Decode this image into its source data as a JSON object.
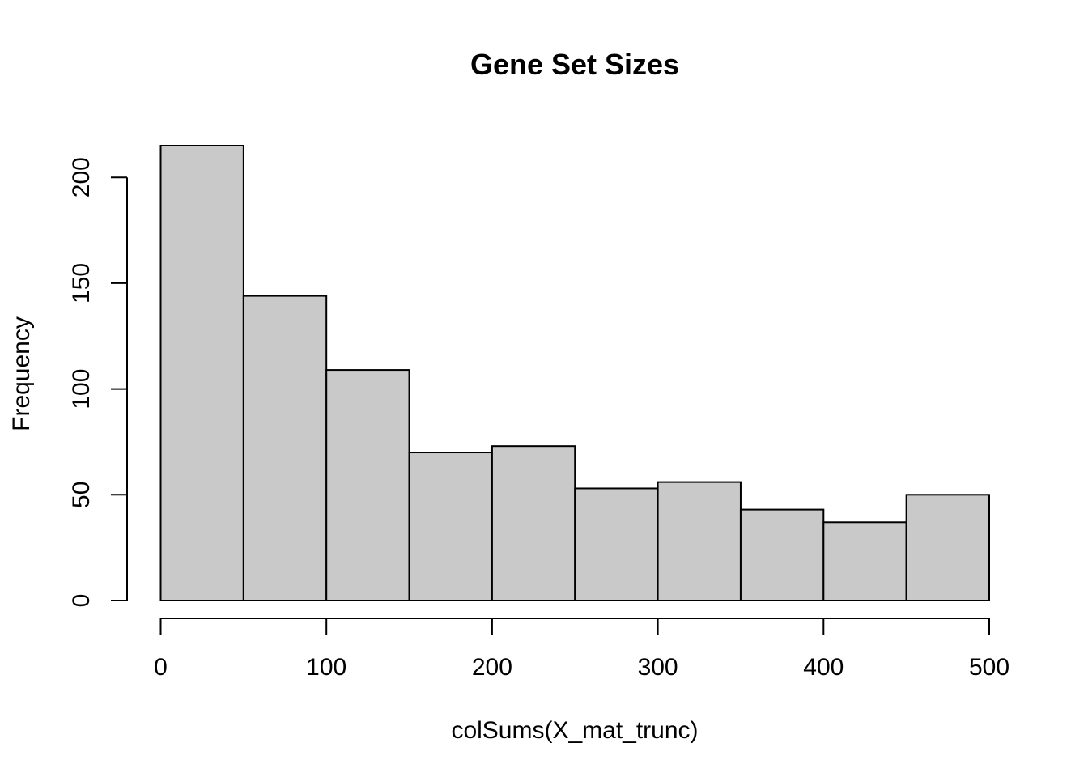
{
  "chart_data": {
    "type": "bar",
    "title": "Gene Set Sizes",
    "xlabel": "colSums(X_mat_trunc)",
    "ylabel": "Frequency",
    "bins": [
      {
        "from": 0,
        "to": 50,
        "value": 215
      },
      {
        "from": 50,
        "to": 100,
        "value": 144
      },
      {
        "from": 100,
        "to": 150,
        "value": 109
      },
      {
        "from": 150,
        "to": 200,
        "value": 70
      },
      {
        "from": 200,
        "to": 250,
        "value": 73
      },
      {
        "from": 250,
        "to": 300,
        "value": 53
      },
      {
        "from": 300,
        "to": 350,
        "value": 56
      },
      {
        "from": 350,
        "to": 400,
        "value": 43
      },
      {
        "from": 400,
        "to": 450,
        "value": 37
      },
      {
        "from": 450,
        "to": 500,
        "value": 50
      }
    ],
    "xlim": [
      0,
      500
    ],
    "ylim": [
      0,
      215
    ],
    "x_ticks": [
      "0",
      "100",
      "200",
      "300",
      "400",
      "500"
    ],
    "y_ticks": [
      "0",
      "50",
      "100",
      "150",
      "200"
    ],
    "grid": false,
    "bar_fill": "#c9c9c9"
  }
}
